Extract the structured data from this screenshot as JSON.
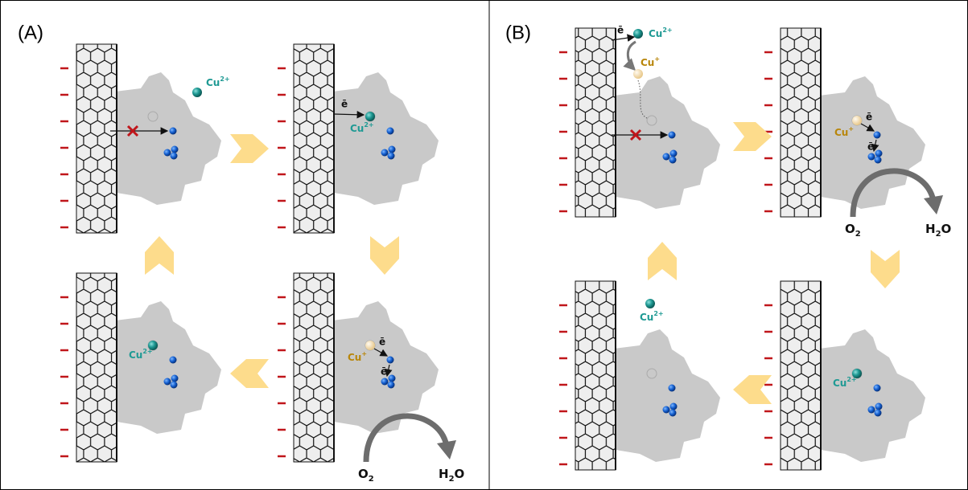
{
  "panels": [
    {
      "label": "(A)",
      "states": [
        {
          "ion": {
            "text": "Cu",
            "sup": "2+"
          }
        },
        {
          "electron": "ē",
          "ion": {
            "text": "Cu",
            "sup": "2+"
          }
        },
        {
          "ion": {
            "text": "Cu",
            "sup": "+"
          },
          "electrons": [
            "ē",
            "ē"
          ],
          "reactant": {
            "text": "O",
            "sub": "2"
          },
          "product": {
            "text": "H",
            "sub": "2",
            "post": "O"
          }
        },
        {
          "ion": {
            "text": "Cu",
            "sup": "2+"
          }
        }
      ]
    },
    {
      "label": "(B)",
      "states": [
        {
          "electron": "ē",
          "ion": {
            "text": "Cu",
            "sup": "2+"
          },
          "ion2": {
            "text": "Cu",
            "sup": "+"
          }
        },
        {
          "ion": {
            "text": "Cu",
            "sup": "+"
          },
          "electrons": [
            "ē",
            "ē"
          ],
          "reactant": {
            "text": "O",
            "sub": "2"
          },
          "product": {
            "text": "H",
            "sub": "2",
            "post": "O"
          }
        },
        {
          "ion": {
            "text": "Cu",
            "sup": "2+"
          }
        },
        {
          "ion": {
            "text": "Cu",
            "sup": "2+"
          }
        }
      ]
    }
  ]
}
